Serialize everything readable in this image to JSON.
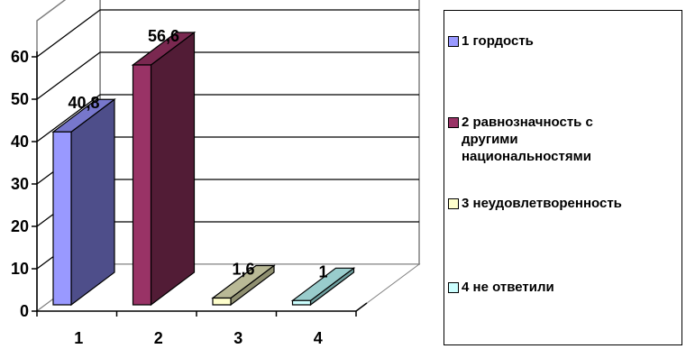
{
  "chart_data": {
    "type": "bar",
    "categories": [
      "1",
      "2",
      "3",
      "4"
    ],
    "values": [
      40.8,
      56.6,
      1.6,
      1
    ],
    "data_labels": [
      "40,8",
      "56,6",
      "1,6",
      "1"
    ],
    "y_ticks": [
      "0",
      "10",
      "20",
      "30",
      "40",
      "50",
      "60"
    ],
    "ylim": [
      0,
      60
    ],
    "grid": true,
    "style": "3d-column",
    "title": "",
    "xlabel": "",
    "ylabel": "",
    "legend_position": "right",
    "legend": [
      {
        "label": "1 гордость",
        "color": "#9999ff"
      },
      {
        "label": "2 равнозначность с\nдругими\nнациональностями",
        "color": "#993366"
      },
      {
        "label": "3 неудовлетворенность",
        "color": "#ffffcc"
      },
      {
        "label": "4 не ответили",
        "color": "#ccffff"
      }
    ],
    "bar_colors": [
      {
        "front": "#9999ff",
        "side": "#4e4e8a",
        "top": "#7777cc"
      },
      {
        "front": "#993366",
        "side": "#521c36",
        "top": "#7a2850"
      },
      {
        "front": "#ffffcc",
        "side": "#8f8f70",
        "top": "#b9b996"
      },
      {
        "front": "#ccffff",
        "side": "#6e9e9e",
        "top": "#99cccc"
      }
    ]
  }
}
